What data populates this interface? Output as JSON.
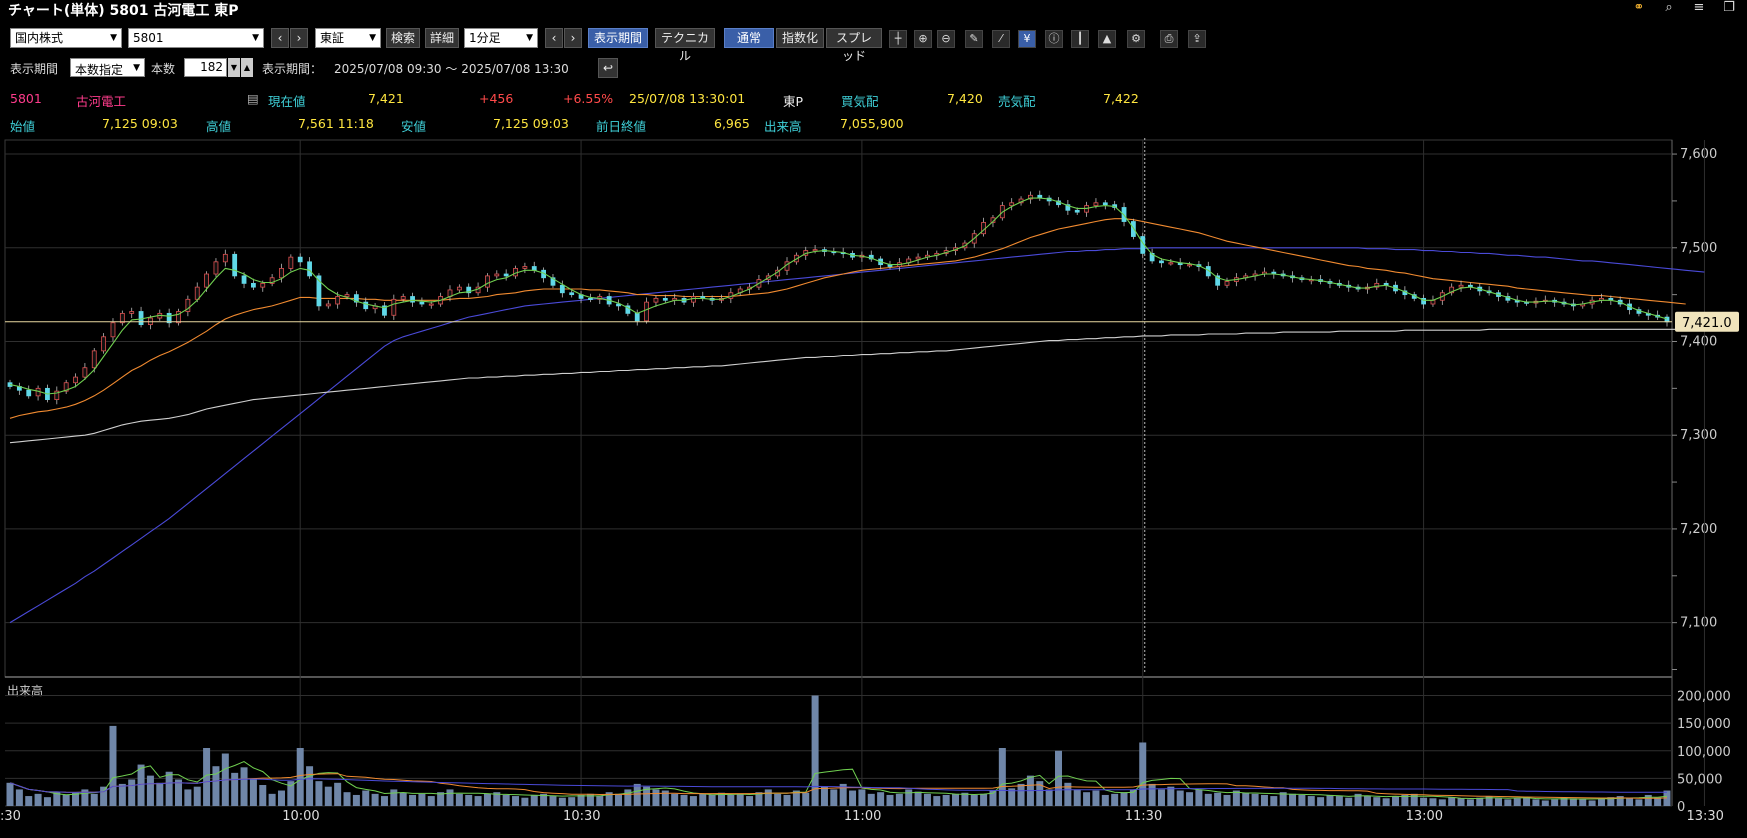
{
  "title": "チャート(単体) 5801 古河電工 東P",
  "win_icons": [
    {
      "name": "link-icon",
      "glyph": "⚭"
    },
    {
      "name": "search-icon",
      "glyph": "⌕"
    },
    {
      "name": "menu-icon",
      "glyph": "≡"
    },
    {
      "name": "restore-icon",
      "glyph": "❐"
    }
  ],
  "toolbar": {
    "market": "国内株式",
    "code": "5801",
    "exchange": "東証",
    "search": "検索",
    "detail": "詳細",
    "interval": "1分足",
    "period_btn": "表示期間",
    "technical": "テクニカル",
    "normal": "通常",
    "exponential": "指数化",
    "spread": "スプレッド"
  },
  "tools": [
    "crosshair-icon",
    "zoom-in-icon",
    "zoom-out-icon",
    "pen-icon",
    "trend-tool-icon",
    "yen-icon",
    "info-icon",
    "bars-icon",
    "area-icon",
    "settings-icon",
    "print-icon",
    "export-icon"
  ],
  "tool_glyphs": [
    "┼",
    "⊕",
    "⊖",
    "✎",
    "⁄",
    "¥",
    "ⓘ",
    "┃",
    "▲",
    "⚙",
    "⎙",
    "⇪"
  ],
  "period": {
    "label": "表示期間",
    "mode": "本数指定",
    "count_label": "本数",
    "count": "182",
    "range_label": "表示期間：",
    "range": "2025/07/08 09:30 〜 2025/07/08 13:30",
    "back_icon": "↩"
  },
  "quote": {
    "code": "5801",
    "name": "古河電工",
    "current_label": "現在値",
    "current": "7,421",
    "change": "+456",
    "change_pct": "+6.55%",
    "datetime": "25/07/08  13:30:01",
    "market": "東P",
    "bid_label": "買気配",
    "bid": "7,420",
    "ask_label": "売気配",
    "ask": "7,422",
    "open_label": "始値",
    "open": "7,125 09:03",
    "high_label": "高値",
    "high": "7,561 11:18",
    "low_label": "安値",
    "low": "7,125 09:03",
    "prev_label": "前日終値",
    "prev": "6,965",
    "volume_label": "出来高",
    "volume": "7,055,900"
  },
  "chart_data": {
    "type": "candlestick",
    "y_ticks": [
      "7,600",
      "7,500",
      "7,400",
      "7,300",
      "7,200",
      "7,100"
    ],
    "y_tick_values": [
      7600,
      7500,
      7400,
      7300,
      7200,
      7100
    ],
    "ylim": [
      7042,
      7615
    ],
    "x_ticks": [
      ":30",
      "10:00",
      "10:30",
      "11:00",
      "11:30",
      "13:00",
      "13:30"
    ],
    "x_tick_index": [
      0,
      31,
      61,
      91,
      121,
      151,
      181
    ],
    "current_price_label": "7,421.0",
    "current_price": 7421,
    "close_series": [
      7352,
      7348,
      7342,
      7350,
      7338,
      7347,
      7356,
      7362,
      7372,
      7390,
      7405,
      7420,
      7430,
      7432,
      7418,
      7425,
      7430,
      7420,
      7432,
      7445,
      7458,
      7472,
      7485,
      7493,
      7470,
      7462,
      7458,
      7462,
      7468,
      7478,
      7490,
      7485,
      7470,
      7438,
      7440,
      7448,
      7450,
      7442,
      7435,
      7438,
      7428,
      7445,
      7448,
      7442,
      7440,
      7440,
      7448,
      7455,
      7458,
      7452,
      7458,
      7470,
      7472,
      7470,
      7478,
      7480,
      7476,
      7468,
      7460,
      7452,
      7450,
      7446,
      7445,
      7448,
      7440,
      7438,
      7430,
      7422,
      7442,
      7446,
      7444,
      7446,
      7442,
      7448,
      7446,
      7444,
      7446,
      7452,
      7456,
      7458,
      7466,
      7470,
      7476,
      7485,
      7492,
      7497,
      7498,
      7496,
      7495,
      7494,
      7490,
      7492,
      7488,
      7482,
      7480,
      7484,
      7488,
      7490,
      7492,
      7494,
      7497,
      7500,
      7505,
      7515,
      7527,
      7532,
      7545,
      7548,
      7552,
      7556,
      7553,
      7550,
      7546,
      7540,
      7538,
      7545,
      7548,
      7546,
      7543,
      7528,
      7512,
      7494,
      7486,
      7484,
      7484,
      7482,
      7482,
      7480,
      7470,
      7460,
      7464,
      7468,
      7470,
      7472,
      7474,
      7472,
      7470,
      7468,
      7466,
      7466,
      7464,
      7462,
      7460,
      7458,
      7456,
      7458,
      7462,
      7460,
      7454,
      7450,
      7446,
      7440,
      7444,
      7452,
      7458,
      7460,
      7458,
      7454,
      7452,
      7448,
      7444,
      7442,
      7441,
      7443,
      7444,
      7442,
      7440,
      7438,
      7440,
      7444,
      7446,
      7444,
      7440,
      7434,
      7430,
      7428,
      7426,
      7421
    ],
    "ma_short": [
      7354,
      7352,
      7349,
      7347,
      7344,
      7345,
      7348,
      7352,
      7360,
      7370,
      7384,
      7398,
      7412,
      7423,
      7424,
      7426,
      7428,
      7427,
      7429,
      7435,
      7444,
      7456,
      7468,
      7478,
      7476,
      7472,
      7466,
      7463,
      7463,
      7467,
      7474,
      7478,
      7476,
      7465,
      7456,
      7450,
      7447,
      7443,
      7440,
      7438,
      7436,
      7440,
      7442,
      7444,
      7443,
      7442,
      7444,
      7448,
      7452,
      7453,
      7456,
      7462,
      7466,
      7468,
      7473,
      7476,
      7476,
      7473,
      7467,
      7461,
      7455,
      7450,
      7447,
      7446,
      7444,
      7441,
      7436,
      7430,
      7434,
      7438,
      7441,
      7444,
      7444,
      7446,
      7446,
      7445,
      7445,
      7448,
      7452,
      7456,
      7462,
      7468,
      7474,
      7482,
      7488,
      7494,
      7496,
      7497,
      7496,
      7495,
      7492,
      7491,
      7489,
      7485,
      7482,
      7482,
      7484,
      7487,
      7490,
      7492,
      7495,
      7498,
      7502,
      7510,
      7519,
      7528,
      7538,
      7544,
      7549,
      7553,
      7553,
      7552,
      7549,
      7545,
      7542,
      7542,
      7544,
      7545,
      7544,
      7535,
      7521,
      7505,
      7493,
      7488,
      7486,
      7484,
      7483,
      7481,
      7476,
      7468,
      7465,
      7466,
      7468,
      7470,
      7472,
      7472,
      7471,
      7469,
      7467,
      7466,
      7465,
      7463,
      7461,
      7459,
      7457,
      7457,
      7459,
      7460,
      7457,
      7453,
      7449,
      7444,
      7444,
      7448,
      7453,
      7457,
      7458,
      7456,
      7453,
      7450,
      7447,
      7444,
      7442,
      7442,
      7443,
      7443,
      7441,
      7439,
      7440,
      7442,
      7444,
      7444,
      7442,
      7437,
      7433,
      7430,
      7427,
      7424
    ],
    "ma_mid": [
      7318,
      7321,
      7323,
      7325,
      7326,
      7328,
      7330,
      7333,
      7337,
      7342,
      7348,
      7355,
      7362,
      7369,
      7374,
      7380,
      7385,
      7389,
      7394,
      7399,
      7405,
      7411,
      7418,
      7424,
      7428,
      7431,
      7434,
      7436,
      7438,
      7441,
      7444,
      7447,
      7447,
      7446,
      7446,
      7446,
      7446,
      7446,
      7445,
      7445,
      7444,
      7444,
      7444,
      7444,
      7444,
      7444,
      7444,
      7445,
      7446,
      7446,
      7447,
      7448,
      7450,
      7451,
      7452,
      7454,
      7455,
      7456,
      7456,
      7456,
      7456,
      7456,
      7455,
      7455,
      7454,
      7453,
      7452,
      7450,
      7450,
      7449,
      7449,
      7449,
      7448,
      7448,
      7448,
      7448,
      7448,
      7448,
      7449,
      7450,
      7451,
      7452,
      7454,
      7456,
      7459,
      7462,
      7465,
      7468,
      7470,
      7472,
      7474,
      7476,
      7477,
      7478,
      7479,
      7480,
      7481,
      7482,
      7483,
      7484,
      7485,
      7486,
      7488,
      7490,
      7493,
      7496,
      7499,
      7503,
      7507,
      7511,
      7514,
      7517,
      7520,
      7522,
      7524,
      7526,
      7528,
      7530,
      7531,
      7531,
      7530,
      7528,
      7526,
      7524,
      7522,
      7520,
      7518,
      7516,
      7513,
      7510,
      7507,
      7505,
      7503,
      7501,
      7499,
      7497,
      7495,
      7493,
      7491,
      7489,
      7487,
      7485,
      7483,
      7481,
      7480,
      7478,
      7477,
      7476,
      7474,
      7473,
      7471,
      7469,
      7467,
      7466,
      7465,
      7464,
      7463,
      7462,
      7461,
      7460,
      7459,
      7457,
      7456,
      7455,
      7454,
      7453,
      7452,
      7451,
      7450,
      7449,
      7449,
      7448,
      7447,
      7446,
      7445,
      7444,
      7443,
      7442,
      7441,
      7440
    ],
    "ma_long": [
      7100,
      7106,
      7112,
      7118,
      7124,
      7130,
      7136,
      7142,
      7149,
      7155,
      7162,
      7169,
      7176,
      7183,
      7190,
      7197,
      7204,
      7211,
      7219,
      7227,
      7235,
      7243,
      7251,
      7259,
      7267,
      7275,
      7283,
      7291,
      7299,
      7307,
      7315,
      7323,
      7331,
      7339,
      7347,
      7355,
      7363,
      7371,
      7379,
      7387,
      7395,
      7401,
      7405,
      7408,
      7411,
      7414,
      7417,
      7420,
      7423,
      7426,
      7428,
      7430,
      7432,
      7434,
      7436,
      7438,
      7439,
      7440,
      7441,
      7442,
      7443,
      7444,
      7445,
      7446,
      7447,
      7448,
      7449,
      7450,
      7451,
      7452,
      7453,
      7454,
      7455,
      7456,
      7457,
      7458,
      7459,
      7460,
      7461,
      7462,
      7463,
      7464,
      7465,
      7466,
      7467,
      7468,
      7469,
      7470,
      7471,
      7472,
      7473,
      7474,
      7475,
      7476,
      7477,
      7478,
      7479,
      7480,
      7481,
      7482,
      7483,
      7484,
      7485,
      7486,
      7487,
      7488,
      7489,
      7490,
      7491,
      7492,
      7493,
      7494,
      7495,
      7496,
      7496,
      7497,
      7497,
      7498,
      7498,
      7499,
      7499,
      7499,
      7500,
      7500,
      7500,
      7500,
      7500,
      7500,
      7500,
      7500,
      7500,
      7500,
      7500,
      7500,
      7500,
      7500,
      7500,
      7500,
      7500,
      7500,
      7500,
      7500,
      7500,
      7500,
      7500,
      7499,
      7499,
      7499,
      7498,
      7498,
      7498,
      7497,
      7497,
      7496,
      7496,
      7495,
      7495,
      7494,
      7494,
      7493,
      7492,
      7492,
      7491,
      7490,
      7490,
      7489,
      7488,
      7487,
      7486,
      7486,
      7485,
      7484,
      7483,
      7482,
      7481,
      7480,
      7479,
      7478,
      7477,
      7476,
      7475,
      7474
    ],
    "ma_xlong": [
      7292,
      7293,
      7294,
      7295,
      7296,
      7297,
      7298,
      7299,
      7300,
      7302,
      7305,
      7308,
      7311,
      7313,
      7315,
      7316,
      7317,
      7318,
      7320,
      7322,
      7325,
      7328,
      7330,
      7332,
      7334,
      7336,
      7338,
      7339,
      7340,
      7341,
      7342,
      7343,
      7344,
      7345,
      7346,
      7347,
      7348,
      7349,
      7350,
      7351,
      7352,
      7353,
      7354,
      7355,
      7356,
      7357,
      7358,
      7359,
      7360,
      7361,
      7361,
      7362,
      7362,
      7363,
      7363,
      7364,
      7364,
      7365,
      7365,
      7366,
      7366,
      7367,
      7367,
      7368,
      7368,
      7369,
      7369,
      7370,
      7370,
      7371,
      7371,
      7372,
      7372,
      7373,
      7373,
      7374,
      7374,
      7375,
      7376,
      7377,
      7378,
      7379,
      7380,
      7381,
      7382,
      7383,
      7383,
      7384,
      7384,
      7385,
      7385,
      7386,
      7386,
      7387,
      7387,
      7388,
      7388,
      7389,
      7389,
      7390,
      7390,
      7391,
      7392,
      7393,
      7394,
      7395,
      7396,
      7397,
      7398,
      7399,
      7400,
      7401,
      7401,
      7402,
      7402,
      7403,
      7403,
      7404,
      7404,
      7405,
      7405,
      7406,
      7406,
      7406,
      7407,
      7407,
      7407,
      7407,
      7408,
      7408,
      7408,
      7408,
      7409,
      7409,
      7409,
      7409,
      7410,
      7410,
      7410,
      7410,
      7410,
      7410,
      7411,
      7411,
      7411,
      7411,
      7411,
      7411,
      7411,
      7412,
      7412,
      7412,
      7412,
      7412,
      7412,
      7412,
      7412,
      7412,
      7413,
      7413,
      7413,
      7413,
      7413,
      7413,
      7413,
      7413,
      7413,
      7413,
      7413,
      7413,
      7413,
      7413,
      7413,
      7413,
      7413,
      7413,
      7413,
      7413,
      7413,
      7413
    ],
    "volume_label": "出来高",
    "volume_ticks": [
      "200,000",
      "150,000",
      "100,000",
      "50,000",
      "0"
    ],
    "volume_tick_values": [
      200000,
      150000,
      100000,
      50000,
      0
    ],
    "volume": [
      42000,
      30000,
      18000,
      22000,
      16000,
      25000,
      20000,
      24000,
      30000,
      22000,
      35000,
      145000,
      40000,
      48000,
      75000,
      55000,
      42000,
      62000,
      48000,
      30000,
      35000,
      105000,
      72000,
      95000,
      60000,
      70000,
      48000,
      38000,
      22000,
      28000,
      45000,
      105000,
      72000,
      45000,
      35000,
      42000,
      25000,
      20000,
      28000,
      22000,
      18000,
      30000,
      24000,
      20000,
      22000,
      18000,
      25000,
      30000,
      22000,
      20000,
      18000,
      22000,
      25000,
      20000,
      18000,
      15000,
      20000,
      22000,
      18000,
      15000,
      16000,
      20000,
      22000,
      18000,
      25000,
      22000,
      30000,
      40000,
      35000,
      30000,
      28000,
      22000,
      20000,
      18000,
      22000,
      20000,
      24000,
      20000,
      22000,
      18000,
      25000,
      30000,
      22000,
      20000,
      28000,
      24000,
      200000,
      35000,
      30000,
      40000,
      28000,
      30000,
      22000,
      25000,
      20000,
      22000,
      30000,
      26000,
      22000,
      18000,
      20000,
      22000,
      24000,
      20000,
      22000,
      28000,
      105000,
      32000,
      40000,
      55000,
      45000,
      30000,
      100000,
      42000,
      30000,
      25000,
      28000,
      20000,
      22000,
      25000,
      30000,
      115000,
      40000,
      30000,
      35000,
      28000,
      25000,
      30000,
      22000,
      24000,
      20000,
      28000,
      24000,
      22000,
      20000,
      18000,
      25000,
      22000,
      20000,
      18000,
      16000,
      20000,
      18000,
      15000,
      22000,
      18000,
      16000,
      14000,
      18000,
      20000,
      22000,
      15000,
      14000,
      12000,
      16000,
      14000,
      12000,
      15000,
      18000,
      14000,
      12000,
      14000,
      16000,
      12000,
      10000,
      12000,
      15000,
      14000,
      12000,
      10000,
      14000,
      16000,
      18000,
      14000,
      12000,
      20000,
      15000,
      28000
    ]
  }
}
